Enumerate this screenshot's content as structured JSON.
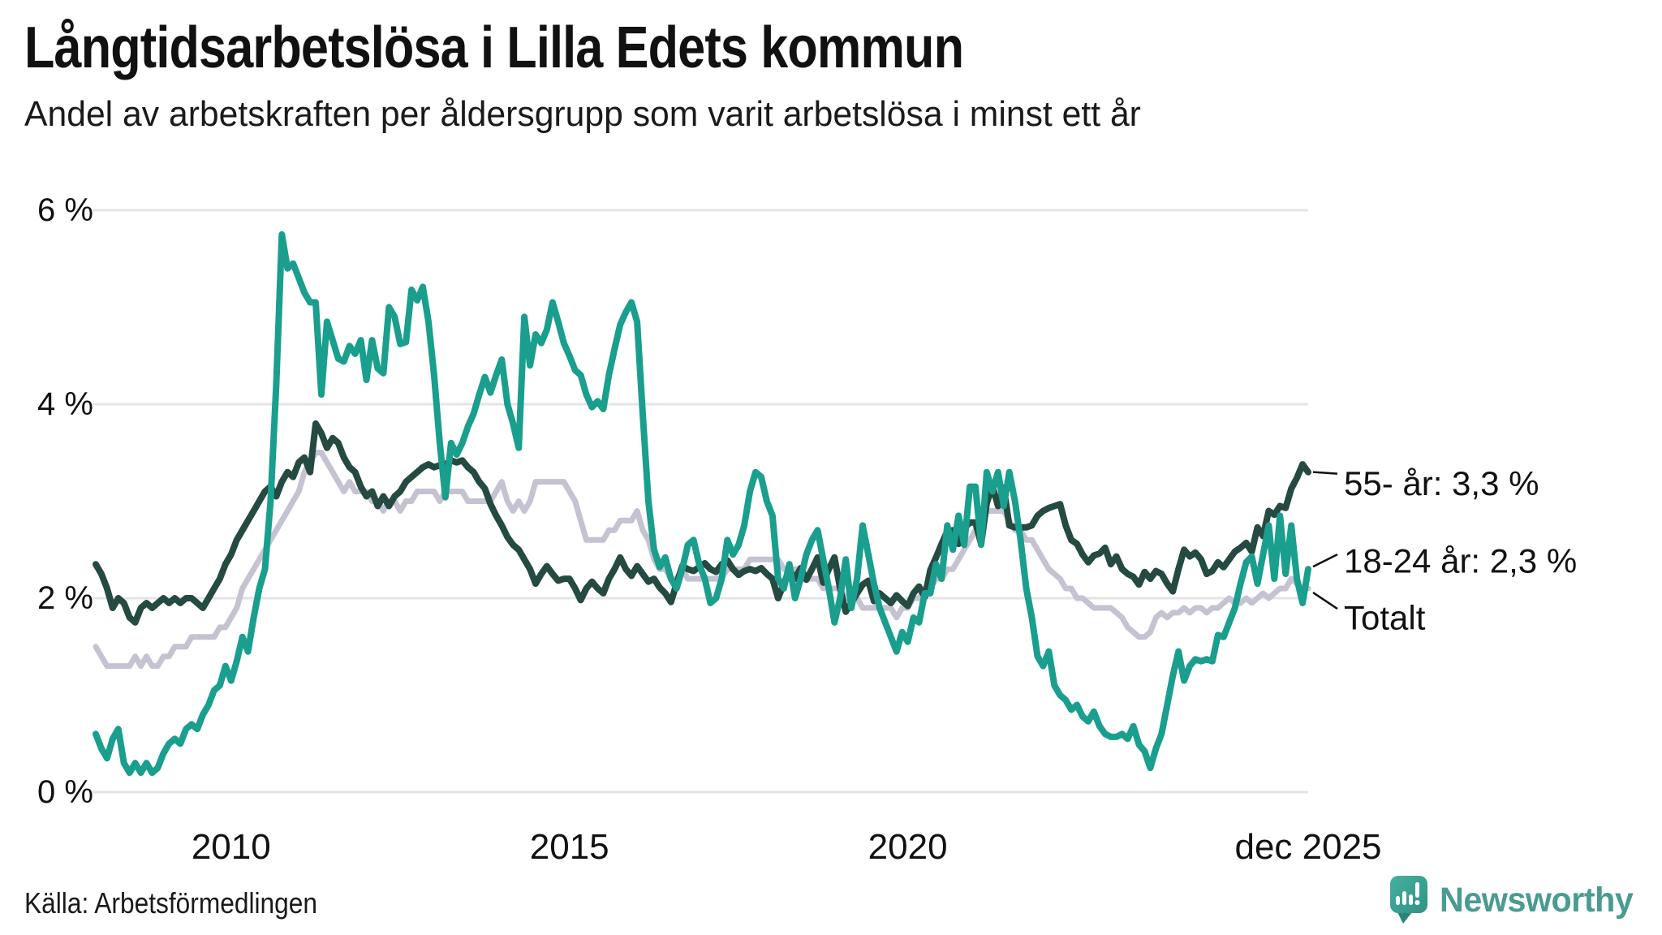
{
  "header": {
    "title": "Långtidsarbetslösa i Lilla Edets kommun",
    "subtitle": "Andel av arbetskraften per åldersgrupp som varit arbetslösa i minst ett år"
  },
  "chart_data": {
    "type": "line",
    "title": "Långtidsarbetslösa i Lilla Edets kommun",
    "unit": "%",
    "grid": "horizontal",
    "legend_position": "end-of-line-labels",
    "ylim": [
      0,
      6
    ],
    "x_start": "2008-01",
    "x_end": "2025-12",
    "points_per_year": 12,
    "y_ticks": [
      {
        "value": 6,
        "label": "6 %"
      },
      {
        "value": 4,
        "label": "4 %"
      },
      {
        "value": 2,
        "label": "2 %"
      },
      {
        "value": 0,
        "label": "0 %"
      }
    ],
    "x_ticks": [
      {
        "month_index": 24,
        "label": "2010"
      },
      {
        "month_index": 84,
        "label": "2015"
      },
      {
        "month_index": 144,
        "label": "2020"
      },
      {
        "month_index": 215,
        "label": "dec 2025"
      }
    ],
    "series": [
      {
        "name": "55- år",
        "end_label": "55- år: 3,3 %",
        "end_value_text": "3,3 %",
        "color": "#254a41",
        "values": [
          2.35,
          2.25,
          2.1,
          1.9,
          2.0,
          1.95,
          1.8,
          1.75,
          1.9,
          1.95,
          1.9,
          1.95,
          2.0,
          1.95,
          2.0,
          1.95,
          2.0,
          2.0,
          1.95,
          1.9,
          2.0,
          2.1,
          2.2,
          2.35,
          2.45,
          2.6,
          2.7,
          2.8,
          2.9,
          3.0,
          3.1,
          3.15,
          3.05,
          3.2,
          3.3,
          3.25,
          3.4,
          3.45,
          3.3,
          3.8,
          3.7,
          3.55,
          3.65,
          3.6,
          3.45,
          3.35,
          3.3,
          3.15,
          3.05,
          3.1,
          2.95,
          3.05,
          2.95,
          3.05,
          3.1,
          3.2,
          3.25,
          3.3,
          3.35,
          3.38,
          3.35,
          3.37,
          3.38,
          3.42,
          3.4,
          3.42,
          3.35,
          3.3,
          3.2,
          3.13,
          2.97,
          2.85,
          2.75,
          2.63,
          2.55,
          2.5,
          2.4,
          2.3,
          2.15,
          2.25,
          2.33,
          2.25,
          2.18,
          2.2,
          2.2,
          2.1,
          1.98,
          2.1,
          2.17,
          2.1,
          2.05,
          2.2,
          2.3,
          2.42,
          2.3,
          2.23,
          2.33,
          2.25,
          2.17,
          2.2,
          2.11,
          2.05,
          1.96,
          2.15,
          2.33,
          2.3,
          2.28,
          2.32,
          2.36,
          2.3,
          2.27,
          2.35,
          2.39,
          2.3,
          2.24,
          2.28,
          2.3,
          2.28,
          2.31,
          2.25,
          2.2,
          2.0,
          2.15,
          2.29,
          2.2,
          2.31,
          2.19,
          2.3,
          2.42,
          2.16,
          2.3,
          2.42,
          2.1,
          1.86,
          1.95,
          2.05,
          2.14,
          2.18,
          1.97,
          2.05,
          2.0,
          1.95,
          2.03,
          1.97,
          1.92,
          2.05,
          2.12,
          2.01,
          2.29,
          2.42,
          2.56,
          2.69,
          2.7,
          2.56,
          2.72,
          2.78,
          2.78,
          2.56,
          2.98,
          3.16,
          2.95,
          3.14,
          2.75,
          2.73,
          2.73,
          2.73,
          2.75,
          2.85,
          2.9,
          2.93,
          2.95,
          2.97,
          2.75,
          2.6,
          2.56,
          2.45,
          2.37,
          2.44,
          2.46,
          2.52,
          2.35,
          2.43,
          2.3,
          2.25,
          2.22,
          2.14,
          2.27,
          2.2,
          2.28,
          2.25,
          2.15,
          2.07,
          2.3,
          2.5,
          2.43,
          2.47,
          2.4,
          2.25,
          2.28,
          2.37,
          2.32,
          2.4,
          2.48,
          2.52,
          2.57,
          2.48,
          2.73,
          2.64,
          2.9,
          2.86,
          2.95,
          2.93,
          3.13,
          3.24,
          3.38,
          3.3
        ]
      },
      {
        "name": "18-24 år",
        "end_label": "18-24 år: 2,3 %",
        "end_value_text": "2,3 %",
        "color": "#1a9e8e",
        "values": [
          0.6,
          0.45,
          0.35,
          0.55,
          0.65,
          0.3,
          0.2,
          0.3,
          0.2,
          0.3,
          0.2,
          0.25,
          0.4,
          0.5,
          0.55,
          0.5,
          0.65,
          0.7,
          0.65,
          0.8,
          0.9,
          1.05,
          1.1,
          1.3,
          1.15,
          1.35,
          1.6,
          1.45,
          1.8,
          2.1,
          2.3,
          3.0,
          4.2,
          5.75,
          5.4,
          5.45,
          5.3,
          5.15,
          5.05,
          5.05,
          4.1,
          4.85,
          4.66,
          4.47,
          4.44,
          4.6,
          4.52,
          4.66,
          4.25,
          4.66,
          4.37,
          4.32,
          5.0,
          4.9,
          4.62,
          4.64,
          5.18,
          5.07,
          5.21,
          4.85,
          4.3,
          3.6,
          3.04,
          3.6,
          3.48,
          3.6,
          3.77,
          3.9,
          4.1,
          4.28,
          4.12,
          4.3,
          4.46,
          4.0,
          3.8,
          3.55,
          4.9,
          4.4,
          4.72,
          4.63,
          4.77,
          5.05,
          4.85,
          4.63,
          4.5,
          4.35,
          4.3,
          4.1,
          3.97,
          4.03,
          3.95,
          4.3,
          4.57,
          4.82,
          4.95,
          5.05,
          4.85,
          3.9,
          3.0,
          2.5,
          2.32,
          2.42,
          2.2,
          2.1,
          2.3,
          2.55,
          2.6,
          2.35,
          2.2,
          1.95,
          2.0,
          2.2,
          2.6,
          2.45,
          2.55,
          2.75,
          3.1,
          3.3,
          3.25,
          3.0,
          2.85,
          2.2,
          2.1,
          2.35,
          2.0,
          2.2,
          2.45,
          2.6,
          2.7,
          2.4,
          2.1,
          1.75,
          2.0,
          2.4,
          1.9,
          2.2,
          2.75,
          2.45,
          2.15,
          1.9,
          1.75,
          1.6,
          1.45,
          1.65,
          1.55,
          1.8,
          1.75,
          2.05,
          2.05,
          2.35,
          2.2,
          2.75,
          2.5,
          2.85,
          2.55,
          3.15,
          3.15,
          2.55,
          3.3,
          3.1,
          3.3,
          2.95,
          3.3,
          3.0,
          2.6,
          2.1,
          1.8,
          1.4,
          1.3,
          1.45,
          1.1,
          1.0,
          0.95,
          0.85,
          0.9,
          0.78,
          0.73,
          0.83,
          0.68,
          0.6,
          0.57,
          0.57,
          0.6,
          0.55,
          0.68,
          0.49,
          0.42,
          0.25,
          0.45,
          0.6,
          0.9,
          1.2,
          1.45,
          1.15,
          1.3,
          1.37,
          1.35,
          1.37,
          1.35,
          1.62,
          1.6,
          1.75,
          1.9,
          2.15,
          2.37,
          2.43,
          2.15,
          2.45,
          2.75,
          2.2,
          2.85,
          2.25,
          2.75,
          2.2,
          1.95,
          2.3
        ]
      },
      {
        "name": "Totalt",
        "end_label": "Totalt",
        "end_value_text": "",
        "color": "#c5c2d1",
        "values": [
          1.5,
          1.4,
          1.3,
          1.3,
          1.3,
          1.3,
          1.3,
          1.4,
          1.3,
          1.4,
          1.3,
          1.3,
          1.4,
          1.4,
          1.5,
          1.5,
          1.5,
          1.6,
          1.6,
          1.6,
          1.6,
          1.6,
          1.7,
          1.7,
          1.8,
          1.9,
          2.1,
          2.2,
          2.3,
          2.4,
          2.5,
          2.6,
          2.7,
          2.8,
          2.9,
          3.0,
          3.1,
          3.3,
          3.4,
          3.5,
          3.5,
          3.4,
          3.3,
          3.2,
          3.1,
          3.2,
          3.1,
          3.1,
          3.1,
          3.0,
          3.0,
          2.9,
          3.0,
          3.0,
          2.9,
          3.0,
          3.0,
          3.1,
          3.1,
          3.1,
          3.1,
          3.0,
          3.1,
          3.1,
          3.1,
          3.1,
          3.0,
          3.0,
          3.0,
          3.0,
          3.0,
          3.1,
          3.2,
          3.0,
          2.9,
          3.0,
          2.9,
          3.0,
          3.2,
          3.2,
          3.2,
          3.2,
          3.2,
          3.2,
          3.1,
          3.0,
          2.8,
          2.6,
          2.6,
          2.6,
          2.6,
          2.7,
          2.7,
          2.8,
          2.8,
          2.8,
          2.9,
          2.7,
          2.6,
          2.4,
          2.3,
          2.3,
          2.2,
          2.2,
          2.3,
          2.2,
          2.2,
          2.2,
          2.2,
          2.2,
          2.2,
          2.2,
          2.3,
          2.3,
          2.3,
          2.3,
          2.4,
          2.4,
          2.4,
          2.4,
          2.4,
          2.4,
          2.3,
          2.3,
          2.3,
          2.3,
          2.2,
          2.2,
          2.2,
          2.1,
          2.1,
          2.1,
          2.1,
          2.0,
          2.0,
          2.0,
          1.9,
          1.9,
          1.9,
          1.9,
          1.9,
          1.9,
          1.8,
          1.9,
          1.9,
          2.0,
          2.0,
          2.1,
          2.1,
          2.2,
          2.2,
          2.3,
          2.3,
          2.4,
          2.5,
          2.6,
          2.7,
          2.9,
          2.9,
          2.9,
          2.9,
          2.9,
          2.8,
          2.7,
          2.7,
          2.6,
          2.6,
          2.5,
          2.4,
          2.3,
          2.25,
          2.2,
          2.1,
          2.1,
          2.0,
          2.0,
          1.95,
          1.9,
          1.9,
          1.9,
          1.9,
          1.85,
          1.8,
          1.7,
          1.65,
          1.6,
          1.6,
          1.65,
          1.8,
          1.85,
          1.8,
          1.85,
          1.85,
          1.9,
          1.85,
          1.9,
          1.9,
          1.85,
          1.9,
          1.9,
          1.95,
          2.0,
          1.95,
          1.95,
          2.0,
          1.95,
          2.0,
          2.05,
          2.0,
          2.05,
          2.1,
          2.1,
          2.2,
          2.15,
          2.1,
          2.1
        ]
      }
    ]
  },
  "footer": {
    "source": "Källa: Arbetsförmedlingen",
    "brand": "Newsworthy"
  },
  "colors": {
    "accent_teal": "#1a9e8e",
    "dark_green": "#254a41",
    "total_gray": "#c5c2d1",
    "gridline": "#e4e3e8",
    "logo_teal": "#3ba293",
    "logo_tail": "#2e8478",
    "logo_text": "#4a9b91"
  }
}
